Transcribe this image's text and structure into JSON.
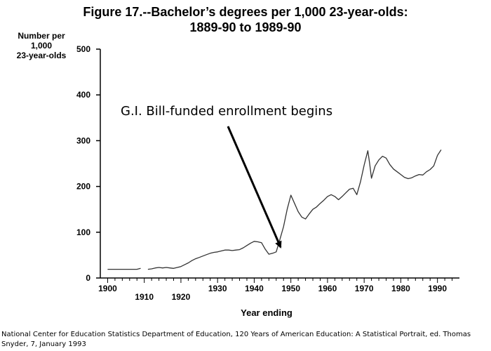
{
  "chart_data": {
    "type": "line",
    "title": "Figure 17.--Bachelor’s degrees per 1,000 23-year-olds:",
    "subtitle": "1889-90 to 1989-90",
    "ylabel_lines": [
      "Number per",
      "1,000",
      "23-year-olds"
    ],
    "xlabel": "Year ending",
    "xlim": [
      1898,
      1996
    ],
    "ylim": [
      0,
      500
    ],
    "yticks": [
      0,
      100,
      200,
      300,
      400,
      500
    ],
    "xticks_upper": [
      1900,
      1930,
      1940,
      1950,
      1960,
      1970,
      1980,
      1990
    ],
    "xticks_lower": [
      1910,
      1920
    ],
    "annotation": {
      "text": "G.I. Bill-funded enrollment begins",
      "target": [
        1945,
        55
      ]
    },
    "series": [
      {
        "values": [
          [
            1900,
            19
          ],
          [
            1902,
            19
          ],
          [
            1904,
            19
          ],
          [
            1906,
            19
          ],
          [
            1908,
            19
          ],
          [
            1909,
            21
          ]
        ]
      },
      {
        "values": [
          [
            1911,
            19
          ],
          [
            1912,
            20
          ],
          [
            1913,
            22
          ],
          [
            1914,
            23
          ],
          [
            1915,
            22
          ],
          [
            1916,
            23
          ],
          [
            1917,
            22
          ],
          [
            1918,
            21
          ],
          [
            1919,
            23
          ],
          [
            1920,
            25
          ],
          [
            1921,
            29
          ],
          [
            1922,
            33
          ],
          [
            1923,
            38
          ],
          [
            1924,
            42
          ],
          [
            1925,
            45
          ],
          [
            1926,
            48
          ],
          [
            1927,
            51
          ],
          [
            1928,
            54
          ],
          [
            1929,
            56
          ],
          [
            1930,
            57
          ],
          [
            1931,
            59
          ],
          [
            1932,
            61
          ],
          [
            1933,
            61
          ],
          [
            1934,
            60
          ],
          [
            1935,
            61
          ],
          [
            1936,
            62
          ],
          [
            1937,
            66
          ],
          [
            1938,
            71
          ],
          [
            1939,
            76
          ],
          [
            1940,
            80
          ],
          [
            1941,
            79
          ],
          [
            1942,
            77
          ],
          [
            1943,
            63
          ],
          [
            1944,
            52
          ],
          [
            1945,
            54
          ],
          [
            1946,
            57
          ],
          [
            1947,
            84
          ],
          [
            1948,
            112
          ],
          [
            1949,
            150
          ],
          [
            1950,
            181
          ],
          [
            1951,
            163
          ],
          [
            1952,
            145
          ],
          [
            1953,
            133
          ],
          [
            1954,
            129
          ],
          [
            1955,
            140
          ],
          [
            1956,
            150
          ],
          [
            1957,
            155
          ],
          [
            1958,
            163
          ],
          [
            1959,
            170
          ],
          [
            1960,
            178
          ],
          [
            1961,
            182
          ],
          [
            1962,
            178
          ],
          [
            1963,
            171
          ],
          [
            1964,
            178
          ],
          [
            1965,
            186
          ],
          [
            1966,
            194
          ],
          [
            1967,
            196
          ],
          [
            1968,
            182
          ],
          [
            1969,
            210
          ],
          [
            1970,
            247
          ],
          [
            1971,
            278
          ],
          [
            1971.5,
            250
          ],
          [
            1972,
            218
          ],
          [
            1973,
            245
          ],
          [
            1974,
            258
          ],
          [
            1975,
            266
          ],
          [
            1976,
            262
          ],
          [
            1977,
            248
          ],
          [
            1978,
            238
          ],
          [
            1979,
            232
          ],
          [
            1980,
            226
          ],
          [
            1981,
            220
          ],
          [
            1982,
            217
          ],
          [
            1983,
            219
          ],
          [
            1984,
            223
          ],
          [
            1985,
            226
          ],
          [
            1986,
            225
          ],
          [
            1987,
            232
          ],
          [
            1988,
            237
          ],
          [
            1989,
            245
          ],
          [
            1990,
            268
          ],
          [
            1991,
            280
          ]
        ]
      }
    ]
  },
  "source": "National Center for Education Statistics Department of Education, 120 Years of American Education: A Statistical Portrait, ed. Thomas Snyder, 7, January 1993"
}
